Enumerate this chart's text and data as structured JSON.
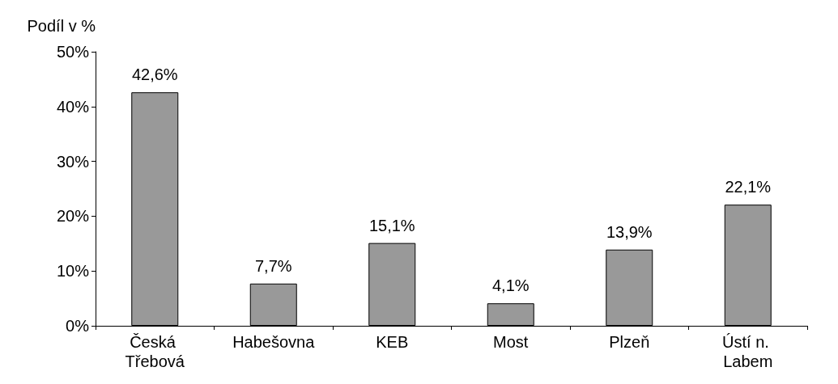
{
  "chart_data": {
    "type": "bar",
    "ylabel": "Podíl v %",
    "categories": [
      "Česká Třebová",
      "Habešovna",
      "KEB",
      "Most",
      "Plzeň",
      "Ústí n. Labem"
    ],
    "values": [
      42.6,
      7.7,
      15.1,
      4.1,
      13.9,
      22.1
    ],
    "value_labels": [
      "42,6%",
      "7,7%",
      "15,1%",
      "4,1%",
      "13,9%",
      "22,1%"
    ],
    "color": "#999999",
    "ylim": [
      0,
      50
    ],
    "yticks": [
      {
        "value": 0,
        "label": "0%"
      },
      {
        "value": 10,
        "label": "10%"
      },
      {
        "value": 20,
        "label": "20%"
      },
      {
        "value": 30,
        "label": "30%"
      },
      {
        "value": 40,
        "label": "40%"
      },
      {
        "value": 50,
        "label": "50%"
      }
    ],
    "grid": false
  }
}
